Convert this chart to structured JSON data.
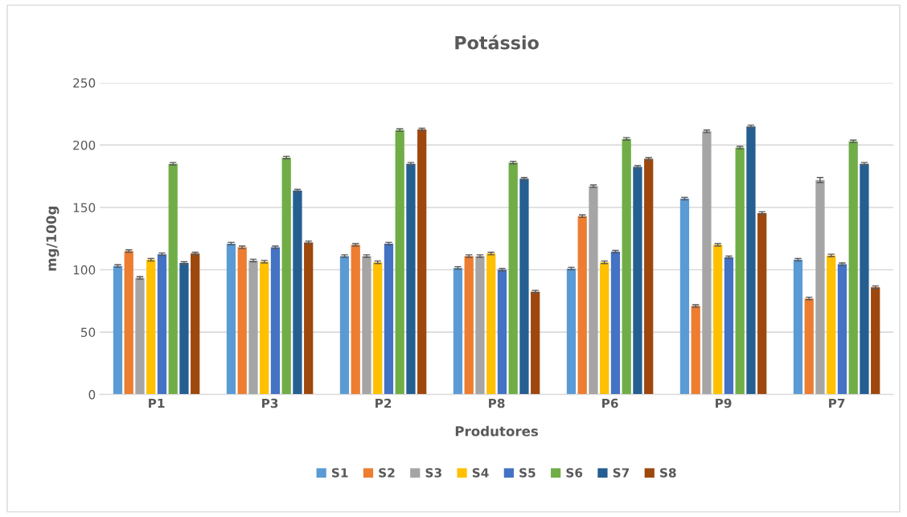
{
  "chart_data": {
    "type": "bar",
    "title": "Potássio",
    "xlabel": "Produtores",
    "ylabel": "mg/100g",
    "categories": [
      "P1",
      "P3",
      "P2",
      "P8",
      "P6",
      "P9",
      "P7"
    ],
    "series": [
      {
        "name": "S1",
        "color": "#5b9bd5",
        "values": [
          103,
          121,
          111,
          101.5,
          101,
          157,
          108
        ],
        "errors": [
          1,
          1,
          1,
          1,
          1,
          1,
          1
        ]
      },
      {
        "name": "S2",
        "color": "#ed7d31",
        "values": [
          115,
          118,
          120,
          111,
          143,
          71,
          77
        ],
        "errors": [
          1,
          1,
          1,
          1,
          1,
          1,
          1
        ]
      },
      {
        "name": "S3",
        "color": "#a5a5a5",
        "values": [
          93.5,
          107.5,
          111,
          111,
          167,
          211,
          172
        ],
        "errors": [
          1,
          1,
          1,
          1,
          1,
          1,
          2
        ]
      },
      {
        "name": "S4",
        "color": "#ffc000",
        "values": [
          108,
          106.5,
          106,
          113,
          106,
          120,
          111.5
        ],
        "errors": [
          1,
          1,
          1,
          1,
          1,
          1,
          1
        ]
      },
      {
        "name": "S5",
        "color": "#4472c4",
        "values": [
          112.5,
          118,
          121,
          100,
          114.5,
          110,
          104.5
        ],
        "errors": [
          1,
          1,
          1,
          1,
          1,
          1,
          1
        ]
      },
      {
        "name": "S6",
        "color": "#70ad47",
        "values": [
          185,
          190,
          212,
          186,
          205,
          198,
          203
        ],
        "errors": [
          1,
          1,
          1,
          1,
          1,
          1,
          1
        ]
      },
      {
        "name": "S7",
        "color": "#255e91",
        "values": [
          105.5,
          163.5,
          185,
          173,
          182.5,
          215,
          185
        ],
        "errors": [
          1,
          1,
          1,
          1,
          1,
          1,
          1
        ]
      },
      {
        "name": "S8",
        "color": "#9e480e",
        "values": [
          113,
          122,
          212.5,
          82.5,
          189,
          145.5,
          86
        ],
        "errors": [
          1,
          1,
          1,
          1,
          1,
          1,
          1
        ]
      }
    ],
    "ylim": [
      0,
      250
    ],
    "yticks": [
      0,
      50,
      100,
      150,
      200,
      250
    ],
    "grid": "y",
    "legend": "bottom"
  }
}
